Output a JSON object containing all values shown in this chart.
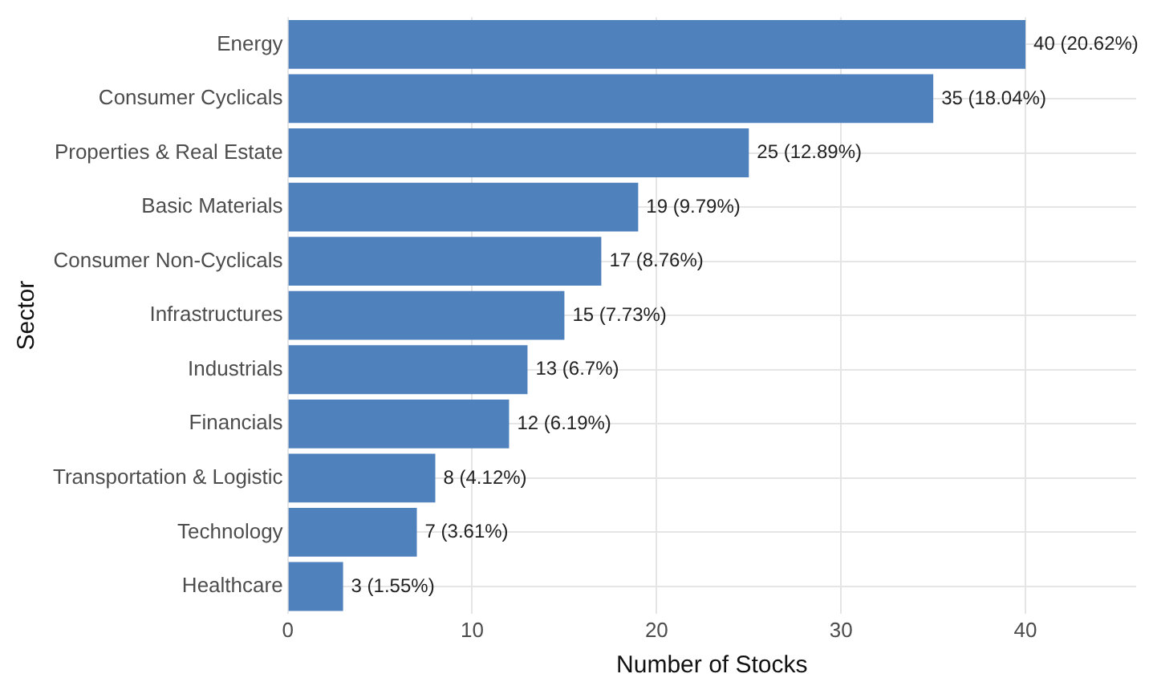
{
  "chart_data": {
    "type": "bar",
    "orientation": "horizontal",
    "xlabel": "Number of Stocks",
    "ylabel": "Sector",
    "categories": [
      "Energy",
      "Consumer Cyclicals",
      "Properties & Real Estate",
      "Basic Materials",
      "Consumer Non-Cyclicals",
      "Infrastructures",
      "Industrials",
      "Financials",
      "Transportation & Logistic",
      "Technology",
      "Healthcare"
    ],
    "values": [
      40,
      35,
      25,
      19,
      17,
      15,
      13,
      12,
      8,
      7,
      3
    ],
    "value_labels": [
      "40 (20.62%)",
      "35 (18.04%)",
      "25 (12.89%)",
      "19 (9.79%)",
      "17 (8.76%)",
      "15 (7.73%)",
      "13 (6.7%)",
      "12 (6.19%)",
      "8 (4.12%)",
      "7 (3.61%)",
      "3 (1.55%)"
    ],
    "color": "#4f81bd",
    "xlim": [
      0,
      46
    ],
    "xticks": [
      0,
      10,
      20,
      30,
      40
    ],
    "grid": true,
    "legend": false
  }
}
